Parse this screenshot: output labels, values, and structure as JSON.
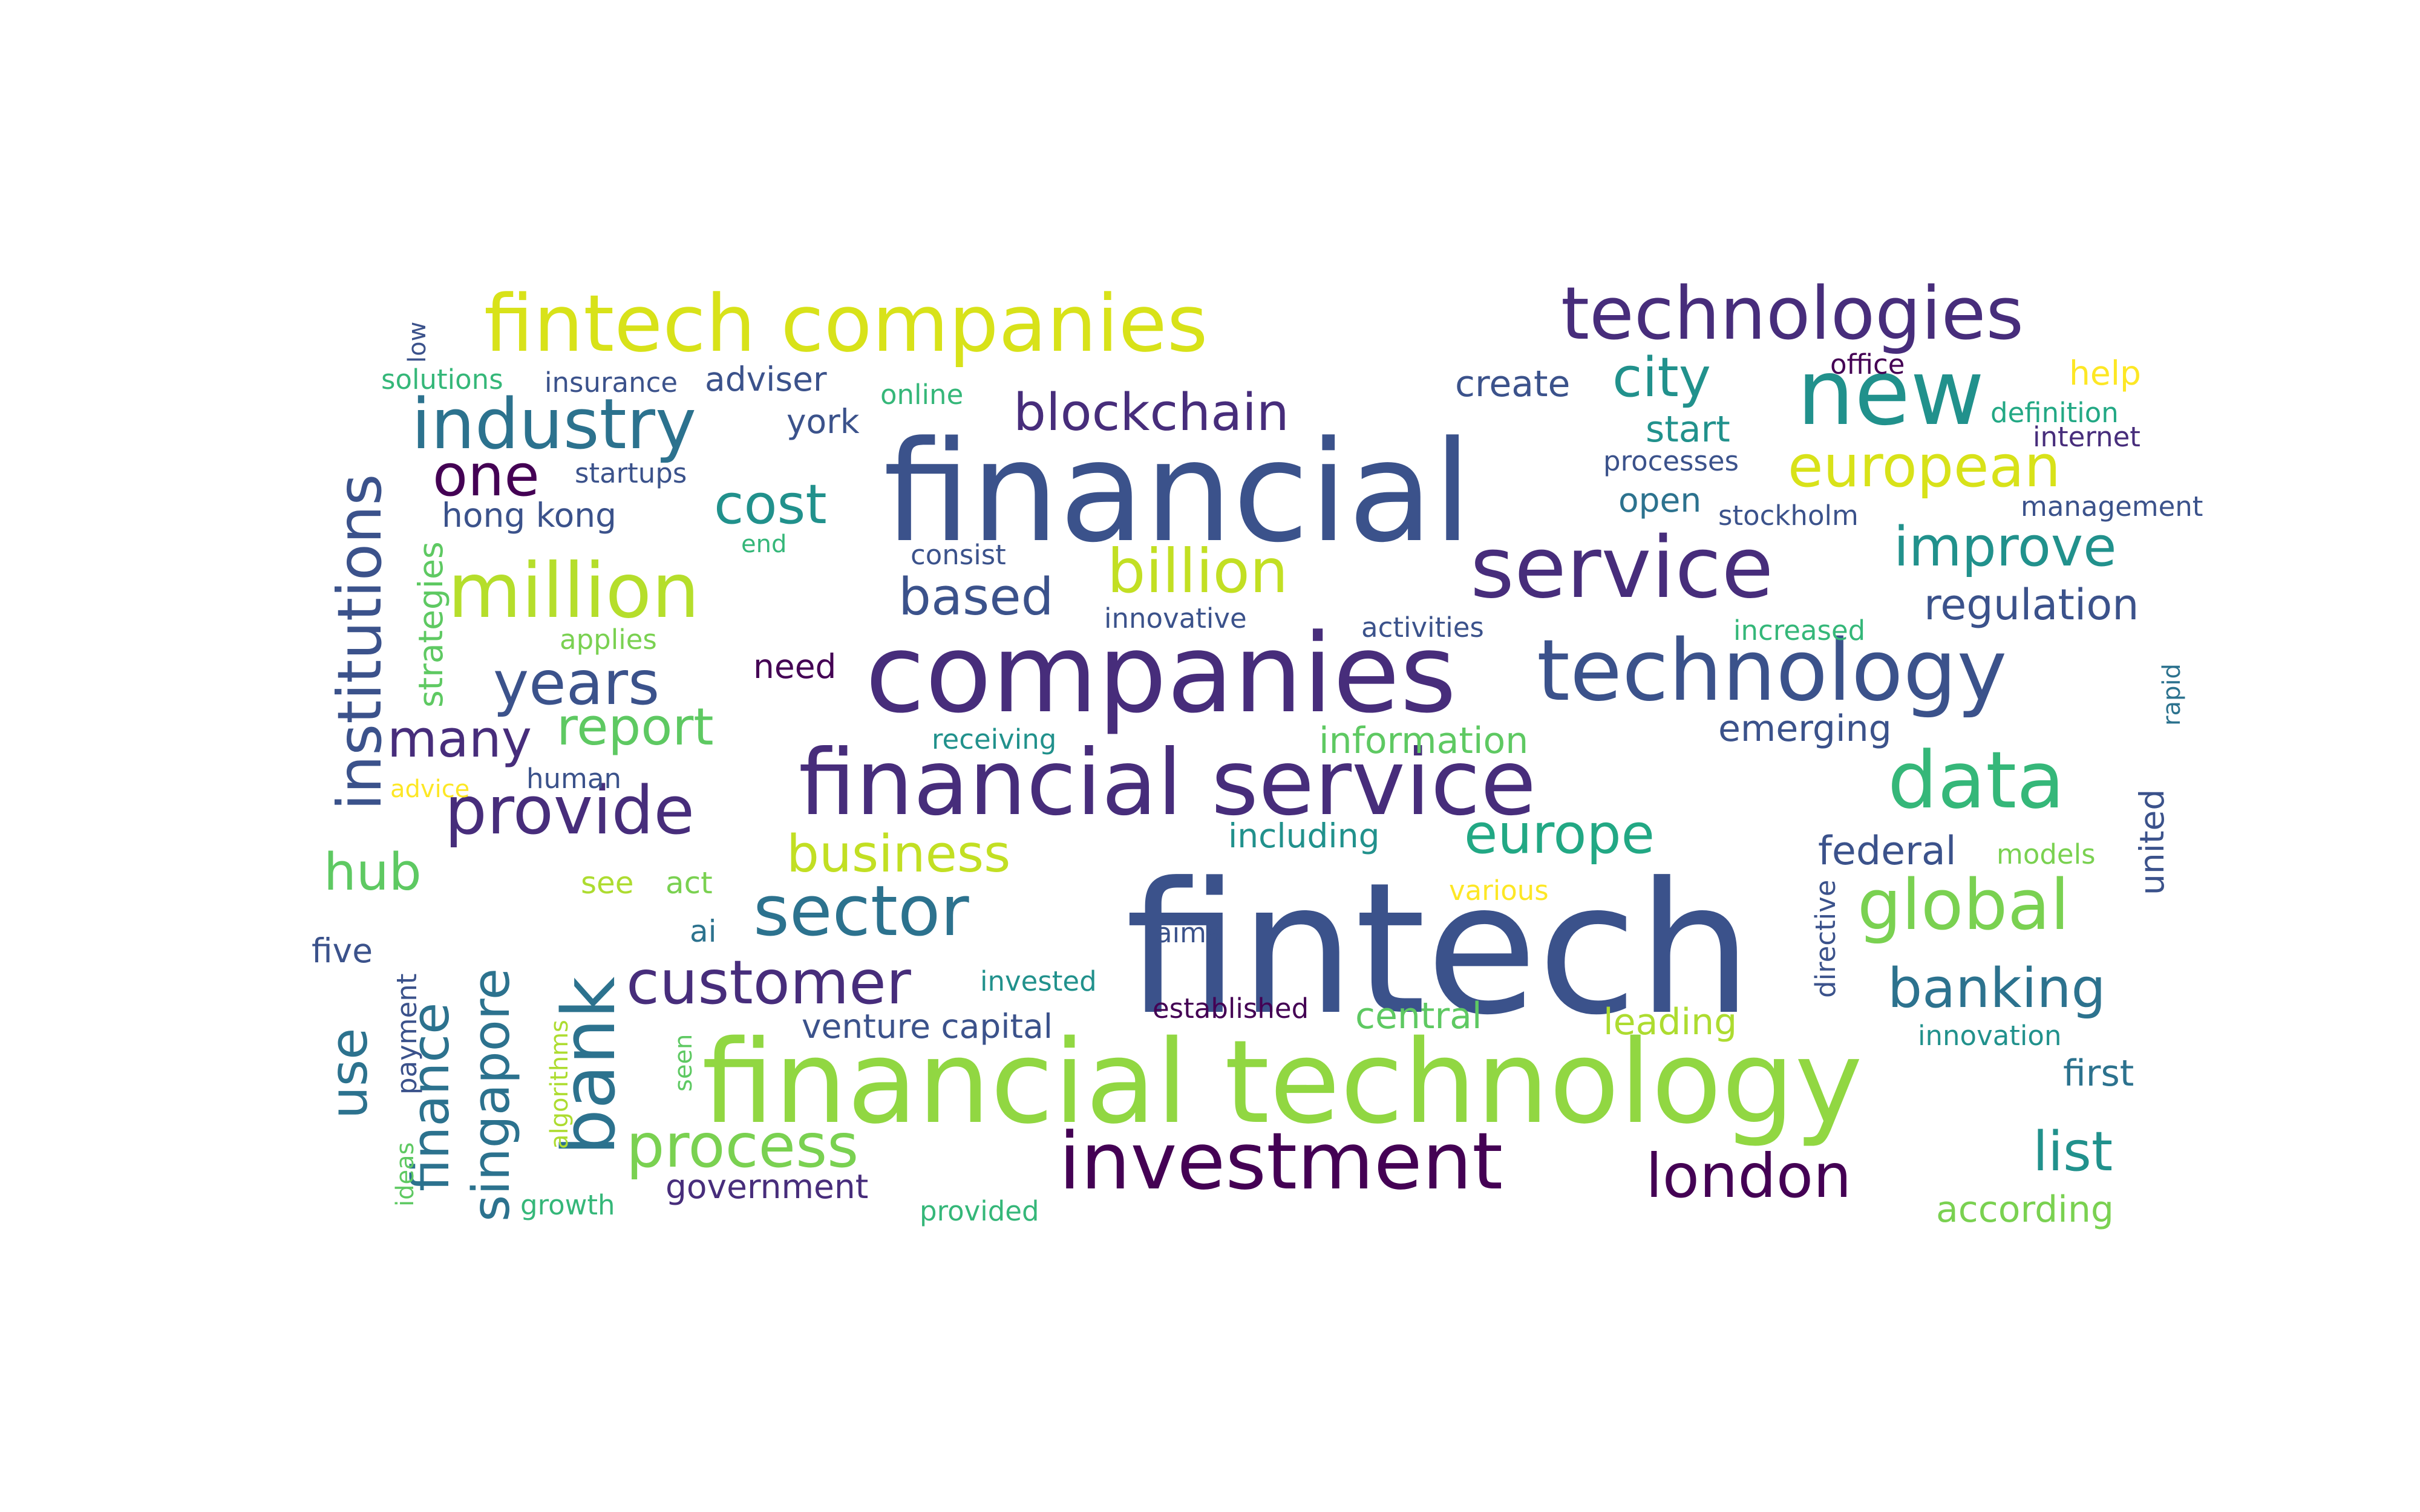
{
  "palette": {
    "dark_purple": "#440154",
    "indigo": "#472d7b",
    "slate": "#3b528b",
    "steel_blue": "#2c728e",
    "teal": "#21918c",
    "green_teal": "#28ae80",
    "green": "#5ec962",
    "lime": "#addc30",
    "yellow": "#fde725"
  },
  "words": [
    {
      "text": "fintech",
      "color": "#3b528b"
    },
    {
      "text": "financial",
      "color": "#3b528b"
    },
    {
      "text": "financial technology",
      "color": "#91d742"
    },
    {
      "text": "companies",
      "color": "#472d7b"
    },
    {
      "text": "financial service",
      "color": "#472d7b"
    },
    {
      "text": "fintech companies",
      "color": "#d8e219"
    },
    {
      "text": "technology",
      "color": "#3b528b"
    },
    {
      "text": "service",
      "color": "#472d7b"
    },
    {
      "text": "investment",
      "color": "#440154"
    },
    {
      "text": "data",
      "color": "#35b779"
    },
    {
      "text": "new",
      "color": "#21918c"
    },
    {
      "text": "technologies",
      "color": "#472d7b"
    },
    {
      "text": "million",
      "color": "#b5de2b"
    },
    {
      "text": "industry",
      "color": "#2c728e"
    },
    {
      "text": "sector",
      "color": "#2c728e"
    },
    {
      "text": "institutions",
      "color": "#3b528b"
    },
    {
      "text": "bank",
      "color": "#2c728e"
    },
    {
      "text": "london",
      "color": "#440154"
    },
    {
      "text": "provide",
      "color": "#472d7b"
    },
    {
      "text": "customer",
      "color": "#472d7b"
    },
    {
      "text": "global",
      "color": "#7ad151"
    },
    {
      "text": "billion",
      "color": "#c2df23"
    },
    {
      "text": "european",
      "color": "#d8e219"
    },
    {
      "text": "process",
      "color": "#7ad151"
    },
    {
      "text": "years",
      "color": "#3b528b"
    },
    {
      "text": "blockchain",
      "color": "#472d7b"
    },
    {
      "text": "improve",
      "color": "#21918c"
    },
    {
      "text": "banking",
      "color": "#2c728e"
    },
    {
      "text": "business",
      "color": "#c2df23"
    },
    {
      "text": "europe",
      "color": "#22a884"
    },
    {
      "text": "singapore",
      "color": "#2c728e"
    },
    {
      "text": "finance",
      "color": "#2c728e"
    },
    {
      "text": "many",
      "color": "#472d7b"
    },
    {
      "text": "report",
      "color": "#5ec962"
    },
    {
      "text": "based",
      "color": "#3b528b"
    },
    {
      "text": "cost",
      "color": "#21918c"
    },
    {
      "text": "city",
      "color": "#21918c"
    },
    {
      "text": "list",
      "color": "#21918c"
    },
    {
      "text": "use",
      "color": "#2c728e"
    },
    {
      "text": "one",
      "color": "#440154"
    },
    {
      "text": "hub",
      "color": "#5ec962"
    },
    {
      "text": "regulation",
      "color": "#3b528b"
    },
    {
      "text": "federal",
      "color": "#3b528b"
    },
    {
      "text": "information",
      "color": "#5ec962"
    },
    {
      "text": "create",
      "color": "#3b528b"
    },
    {
      "text": "start",
      "color": "#21918c"
    },
    {
      "text": "emerging",
      "color": "#3b528b"
    },
    {
      "text": "including",
      "color": "#21918c"
    },
    {
      "text": "first",
      "color": "#2c728e"
    },
    {
      "text": "venture capital",
      "color": "#3b528b"
    },
    {
      "text": "government",
      "color": "#472d7b"
    },
    {
      "text": "central",
      "color": "#5ec962"
    },
    {
      "text": "leading",
      "color": "#addc30"
    },
    {
      "text": "according",
      "color": "#7ad151"
    },
    {
      "text": "united",
      "color": "#3b528b"
    },
    {
      "text": "open",
      "color": "#2c728e"
    },
    {
      "text": "york",
      "color": "#3b528b"
    },
    {
      "text": "adviser",
      "color": "#3b528b"
    },
    {
      "text": "hong kong",
      "color": "#3b528b"
    },
    {
      "text": "help",
      "color": "#fde725"
    },
    {
      "text": "five",
      "color": "#3b528b"
    },
    {
      "text": "need",
      "color": "#440154"
    },
    {
      "text": "see",
      "color": "#addc30"
    },
    {
      "text": "act",
      "color": "#7ad151"
    },
    {
      "text": "ai",
      "color": "#2c728e"
    },
    {
      "text": "office",
      "color": "#440154"
    },
    {
      "text": "definition",
      "color": "#22a884"
    },
    {
      "text": "internet",
      "color": "#472d7b"
    },
    {
      "text": "processes",
      "color": "#3b528b"
    },
    {
      "text": "stockholm",
      "color": "#3b528b"
    },
    {
      "text": "management",
      "color": "#3b528b"
    },
    {
      "text": "increased",
      "color": "#35b779"
    },
    {
      "text": "rapid",
      "color": "#2c728e"
    },
    {
      "text": "activities",
      "color": "#3b528b"
    },
    {
      "text": "innovative",
      "color": "#3b528b"
    },
    {
      "text": "consist",
      "color": "#3b528b"
    },
    {
      "text": "receiving",
      "color": "#21918c"
    },
    {
      "text": "human",
      "color": "#3b528b"
    },
    {
      "text": "advice",
      "color": "#fde725"
    },
    {
      "text": "applies",
      "color": "#7ad151"
    },
    {
      "text": "end",
      "color": "#35b779"
    },
    {
      "text": "startups",
      "color": "#3b528b"
    },
    {
      "text": "insurance",
      "color": "#3b528b"
    },
    {
      "text": "solutions",
      "color": "#35b779"
    },
    {
      "text": "online",
      "color": "#35b779"
    },
    {
      "text": "low",
      "color": "#3b528b"
    },
    {
      "text": "strategies",
      "color": "#5ec962"
    },
    {
      "text": "various",
      "color": "#fde725"
    },
    {
      "text": "aims",
      "color": "#3b528b"
    },
    {
      "text": "invested",
      "color": "#21918c"
    },
    {
      "text": "established",
      "color": "#440154"
    },
    {
      "text": "models",
      "color": "#7ad151"
    },
    {
      "text": "directive",
      "color": "#3b528b"
    },
    {
      "text": "innovation",
      "color": "#21918c"
    },
    {
      "text": "payment",
      "color": "#3b528b"
    },
    {
      "text": "algorithms",
      "color": "#addc30"
    },
    {
      "text": "seen",
      "color": "#5ec962"
    },
    {
      "text": "ideas",
      "color": "#5ec962"
    },
    {
      "text": "growth",
      "color": "#35b779"
    },
    {
      "text": "provided",
      "color": "#35b779"
    }
  ]
}
